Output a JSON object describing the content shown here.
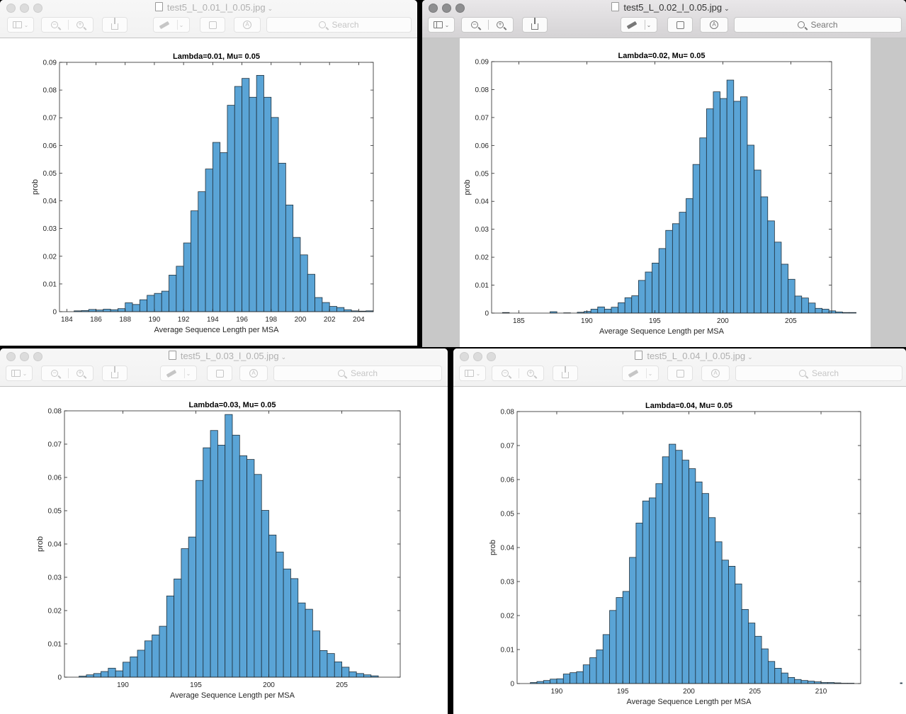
{
  "toolbar": {
    "search_placeholder": "Search"
  },
  "windows": [
    {
      "title": "test5_L_0.01_l_0.05.jpg",
      "chart_data": {
        "type": "bar",
        "title": "Lambda=0.01, Mu= 0.05",
        "xlabel": "Average Sequence Length per MSA",
        "ylabel": "prob",
        "xlim": [
          183.5,
          205
        ],
        "ylim": [
          0,
          0.09
        ],
        "xticks": [
          184,
          186,
          188,
          190,
          192,
          194,
          196,
          198,
          200,
          202,
          204
        ],
        "yticks": [
          0,
          0.01,
          0.02,
          0.03,
          0.04,
          0.05,
          0.06,
          0.07,
          0.08,
          0.09
        ],
        "ytick_labels": [
          "0",
          "0.01",
          "0.02",
          "0.03",
          "0.04",
          "0.05",
          "0.06",
          "0.07",
          "0.08",
          "0.09"
        ],
        "bin_start": 184.5,
        "bin_width": 0.5,
        "values": [
          0.0003,
          0.0004,
          0.0008,
          0.0006,
          0.0009,
          0.0007,
          0.0011,
          0.0032,
          0.0026,
          0.0043,
          0.0059,
          0.0066,
          0.0074,
          0.0132,
          0.0164,
          0.0248,
          0.0364,
          0.0433,
          0.0515,
          0.0611,
          0.0574,
          0.0745,
          0.0813,
          0.0842,
          0.0774,
          0.0853,
          0.0774,
          0.0701,
          0.0536,
          0.0385,
          0.0268,
          0.0205,
          0.0135,
          0.0051,
          0.0033,
          0.0019,
          0.0015,
          0.0007,
          0.0003,
          0.0002,
          0.0003
        ]
      }
    },
    {
      "title": "test5_L_0.02_l_0.05.jpg",
      "chart_data": {
        "type": "bar",
        "title": "Lambda=0.02, Mu= 0.05",
        "xlabel": "Average Sequence Length per MSA",
        "ylabel": "prob",
        "xlim": [
          183,
          208
        ],
        "ylim": [
          0,
          0.09
        ],
        "xticks": [
          185,
          190,
          195,
          200,
          205
        ],
        "yticks": [
          0,
          0.01,
          0.02,
          0.03,
          0.04,
          0.05,
          0.06,
          0.07,
          0.08,
          0.09
        ],
        "ytick_labels": [
          "0",
          "0.01",
          "0.02",
          "0.03",
          "0.04",
          "0.05",
          "0.06",
          "0.07",
          "0.08",
          "0.09"
        ],
        "bin_start": 183.8,
        "bin_width": 0.5,
        "values": [
          0.0002,
          0,
          0,
          0,
          0,
          0,
          0,
          0.0005,
          0,
          0.0001,
          0,
          0.0003,
          0.0006,
          0.0014,
          0.0022,
          0.0014,
          0.0021,
          0.0037,
          0.0055,
          0.0062,
          0.0117,
          0.0147,
          0.0179,
          0.0231,
          0.0296,
          0.032,
          0.0361,
          0.041,
          0.0532,
          0.0627,
          0.0731,
          0.0792,
          0.0768,
          0.0834,
          0.0758,
          0.0774,
          0.0601,
          0.0512,
          0.0416,
          0.033,
          0.0254,
          0.0175,
          0.0121,
          0.0061,
          0.0054,
          0.0036,
          0.0017,
          0.0014,
          0.0008,
          0.0004,
          0.0002,
          0.0002,
          0,
          0,
          0,
          0,
          0,
          0.0002
        ]
      }
    },
    {
      "title": "test5_L_0.03_l_0.05.jpg",
      "chart_data": {
        "type": "bar",
        "title": "Lambda=0.03, Mu= 0.05",
        "xlabel": "Average Sequence Length per MSA",
        "ylabel": "prob",
        "xlim": [
          186,
          209
        ],
        "ylim": [
          0,
          0.08
        ],
        "xticks": [
          190,
          195,
          200,
          205
        ],
        "yticks": [
          0,
          0.01,
          0.02,
          0.03,
          0.04,
          0.05,
          0.06,
          0.07,
          0.08
        ],
        "ytick_labels": [
          "0",
          "0.01",
          "0.02",
          "0.03",
          "0.04",
          "0.05",
          "0.06",
          "0.07",
          "0.08"
        ],
        "bin_start": 187,
        "bin_width": 0.5,
        "values": [
          0.0003,
          0.0007,
          0.0011,
          0.0017,
          0.0027,
          0.0019,
          0.0045,
          0.0061,
          0.0081,
          0.0109,
          0.0127,
          0.0153,
          0.0244,
          0.0295,
          0.0386,
          0.0421,
          0.0591,
          0.0689,
          0.0741,
          0.0697,
          0.0789,
          0.0727,
          0.0665,
          0.0654,
          0.0609,
          0.0501,
          0.0427,
          0.0376,
          0.0325,
          0.0296,
          0.0223,
          0.0204,
          0.0139,
          0.008,
          0.0071,
          0.0046,
          0.003,
          0.0016,
          0.0011,
          0.0007,
          0.0004
        ]
      }
    },
    {
      "title": "test5_L_0.04_l_0.05.jpg",
      "chart_data": {
        "type": "bar",
        "title": "Lambda=0.04, Mu= 0.05",
        "xlabel": "Average Sequence Length per MSA",
        "ylabel": "prob",
        "xlim": [
          187,
          213
        ],
        "ylim": [
          0,
          0.08
        ],
        "xticks": [
          190,
          195,
          200,
          205,
          210
        ],
        "yticks": [
          0,
          0.01,
          0.02,
          0.03,
          0.04,
          0.05,
          0.06,
          0.07,
          0.08
        ],
        "ytick_labels": [
          "0",
          "0.01",
          "0.02",
          "0.03",
          "0.04",
          "0.05",
          "0.06",
          "0.07",
          "0.08"
        ],
        "bin_start": 188,
        "bin_width": 0.5,
        "values": [
          0.0003,
          0.0006,
          0.0009,
          0.0013,
          0.0014,
          0.0028,
          0.0032,
          0.0035,
          0.0055,
          0.0076,
          0.0099,
          0.0144,
          0.0215,
          0.0253,
          0.0271,
          0.0371,
          0.0472,
          0.0537,
          0.0546,
          0.0588,
          0.0667,
          0.0704,
          0.0686,
          0.0657,
          0.0632,
          0.0593,
          0.0559,
          0.0488,
          0.0417,
          0.0363,
          0.0345,
          0.0293,
          0.0218,
          0.0178,
          0.0139,
          0.0102,
          0.0065,
          0.0045,
          0.0031,
          0.0018,
          0.0012,
          0.0009,
          0.0007,
          0.0005,
          0.0003,
          0.0003,
          0.0002,
          0.0001,
          0.0001,
          0,
          0,
          0,
          0,
          0,
          0,
          0,
          0.0002
        ]
      }
    }
  ]
}
